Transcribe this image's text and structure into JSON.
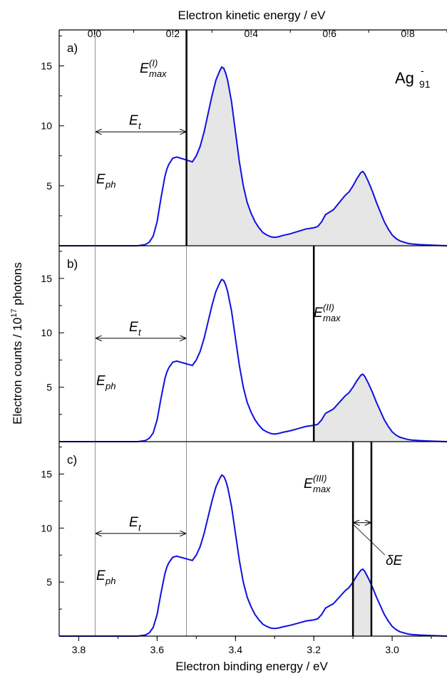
{
  "chart_data": {
    "type": "line",
    "xlabel": "Electron binding energy / eV",
    "x2label": "Electron kinetic energy / eV",
    "ylabel": "Electron counts / 10",
    "ylabel_exp": "17",
    "ylabel_end": " photons",
    "xlim": [
      3.85,
      2.86
    ],
    "x_ticks": [
      3.8,
      3.6,
      3.4,
      3.2,
      3.0
    ],
    "x_tick_labels": [
      "3.8",
      "3.6",
      "3.4",
      "3.2",
      "3.0"
    ],
    "x2lim": [
      -0.09,
      0.9
    ],
    "x2_ticks": [
      0.0,
      0.2,
      0.4,
      0.6,
      0.8
    ],
    "x2_tick_labels": [
      "0.0",
      "0.2",
      "0.4",
      "0.6",
      "0.8"
    ],
    "ylim": [
      0,
      18
    ],
    "y_ticks": [
      5,
      10,
      15
    ],
    "y_tick_labels": [
      "5",
      "10",
      "15"
    ],
    "line_color": "#1010e0",
    "fill_color": "#e6e6e6",
    "species": {
      "base": "Ag",
      "sup": "-",
      "sub": "91"
    },
    "x": [
      3.85,
      3.65,
      3.63,
      3.62,
      3.61,
      3.6,
      3.59,
      3.58,
      3.575,
      3.57,
      3.56,
      3.55,
      3.54,
      3.53,
      3.52,
      3.51,
      3.5,
      3.49,
      3.48,
      3.47,
      3.46,
      3.45,
      3.44,
      3.435,
      3.43,
      3.425,
      3.42,
      3.41,
      3.4,
      3.39,
      3.38,
      3.37,
      3.36,
      3.35,
      3.34,
      3.33,
      3.32,
      3.31,
      3.3,
      3.29,
      3.28,
      3.26,
      3.24,
      3.22,
      3.2,
      3.19,
      3.18,
      3.17,
      3.16,
      3.15,
      3.14,
      3.13,
      3.12,
      3.11,
      3.1,
      3.09,
      3.08,
      3.075,
      3.07,
      3.06,
      3.05,
      3.04,
      3.03,
      3.02,
      3.01,
      3.0,
      2.99,
      2.98,
      2.97,
      2.96,
      2.95,
      2.93,
      2.9,
      2.86
    ],
    "y": [
      0.0,
      0.0,
      0.1,
      0.3,
      0.8,
      2.0,
      4.0,
      5.8,
      6.4,
      6.8,
      7.3,
      7.4,
      7.3,
      7.2,
      7.1,
      7.0,
      7.5,
      8.3,
      9.5,
      11.0,
      12.5,
      13.8,
      14.6,
      14.9,
      14.8,
      14.4,
      13.8,
      12.0,
      9.5,
      7.0,
      5.0,
      3.6,
      2.7,
      2.0,
      1.5,
      1.1,
      0.9,
      0.75,
      0.7,
      0.75,
      0.85,
      1.0,
      1.2,
      1.4,
      1.5,
      1.6,
      2.0,
      2.6,
      2.8,
      3.0,
      3.4,
      3.8,
      4.2,
      4.5,
      5.0,
      5.6,
      6.1,
      6.2,
      6.0,
      5.3,
      4.5,
      3.6,
      2.8,
      2.0,
      1.4,
      0.9,
      0.6,
      0.4,
      0.3,
      0.2,
      0.15,
      0.1,
      0.05,
      0.0
    ],
    "E_ph": 3.758,
    "E_t_line": 3.525,
    "panels": [
      {
        "label": "a)",
        "fill_from": 3.525,
        "fill_to": 2.86,
        "emax_lines": [
          3.525
        ],
        "emax_label": {
          "base": "E",
          "sup": "(I)",
          "sub": "max"
        },
        "et_label": {
          "base": "E",
          "sub": "t"
        },
        "eph_label": {
          "base": "E",
          "sub": "ph"
        },
        "et_arrow_y": 9.5,
        "show_species": true,
        "delta_label": ""
      },
      {
        "label": "b)",
        "fill_from": 3.2,
        "fill_to": 2.86,
        "emax_lines": [
          3.2
        ],
        "emax_label": {
          "base": "E",
          "sup": "(II)",
          "sub": "max"
        },
        "et_label": {
          "base": "E",
          "sub": "t"
        },
        "eph_label": {
          "base": "E",
          "sub": "ph"
        },
        "et_arrow_y": 9.5,
        "show_species": false,
        "delta_label": ""
      },
      {
        "label": "c)",
        "fill_from": 3.1,
        "fill_to": 3.053,
        "emax_lines": [
          3.1,
          3.053
        ],
        "emax_label": {
          "base": "E",
          "sup": "(III)",
          "sub": "max"
        },
        "et_label": {
          "base": "E",
          "sub": "t"
        },
        "eph_label": {
          "base": "E",
          "sub": "ph"
        },
        "et_arrow_y": 9.5,
        "show_species": false,
        "delta_label": "δE"
      }
    ]
  }
}
